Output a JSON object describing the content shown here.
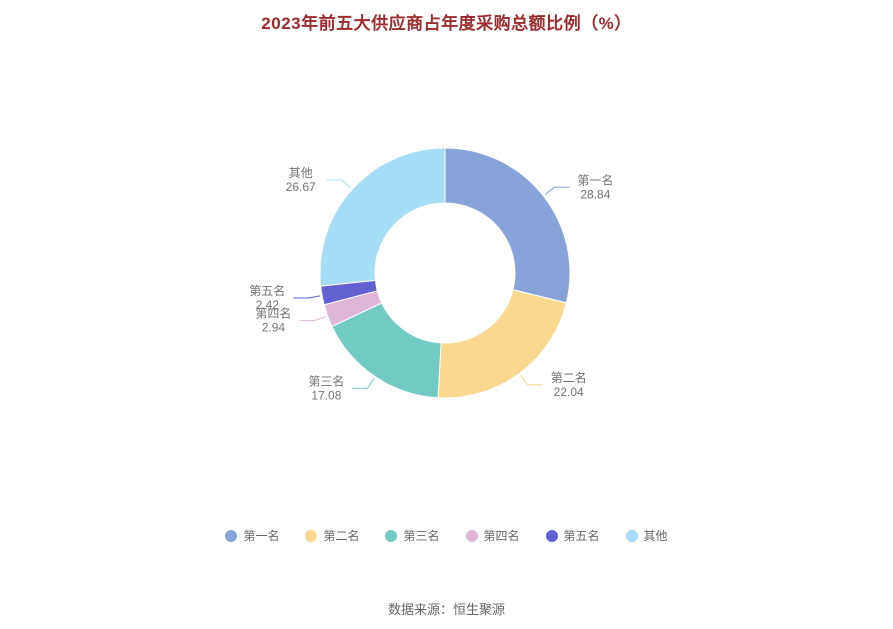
{
  "title": "2023年前五大供应商占年度采购总额比例（%）",
  "footer": "数据来源：恒生聚源",
  "colors": {
    "title": "#9e2b2b",
    "label": "#737373",
    "legend_text": "#666666",
    "footer_text": "#666666",
    "background": "#ffffff"
  },
  "chart_data": {
    "type": "pie",
    "title": "2023年前五大供应商占年度采购总额比例（%）",
    "unit": "%",
    "legend_position": "bottom",
    "inner_radius_ratio": 0.56,
    "start_angle_deg": 0,
    "direction": "clockwise",
    "series": [
      {
        "name": "第一名",
        "value": 28.84,
        "color": "#87A4D8"
      },
      {
        "name": "第二名",
        "value": 22.04,
        "color": "#FBD88F"
      },
      {
        "name": "第三名",
        "value": 17.08,
        "color": "#72CBC3"
      },
      {
        "name": "第四名",
        "value": 2.94,
        "color": "#E0B6D8"
      },
      {
        "name": "第五名",
        "value": 2.42,
        "color": "#6260D2"
      },
      {
        "name": "其他",
        "value": 26.67,
        "color": "#A5DDF6"
      }
    ]
  }
}
